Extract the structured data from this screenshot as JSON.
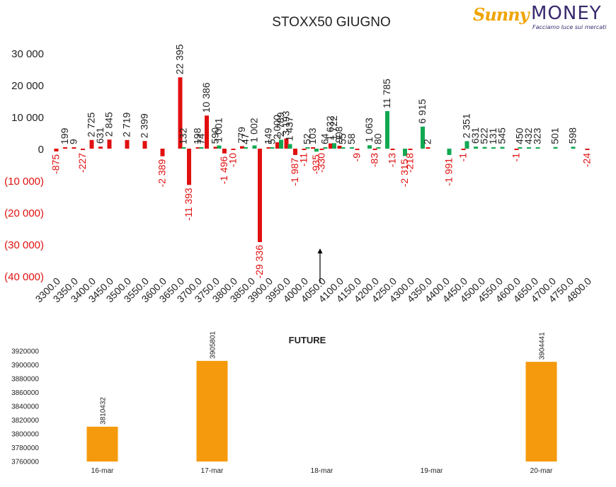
{
  "logo": {
    "brand_a": "Sunny",
    "brand_b": "MONEY",
    "tagline": "Facciamo luce sui mercati"
  },
  "colors": {
    "put": "#e01010",
    "call": "#12a852",
    "future_bar": "#f59a0c",
    "logo_orange": "#f0a400",
    "logo_purple": "#3a2a6e"
  },
  "chart_data": [
    {
      "type": "bar",
      "title": "STOXX50 GIUGNO",
      "x_range": [
        3300,
        4800
      ],
      "ylim": [
        -40000,
        30000
      ],
      "y_ticks": [
        {
          "v": 30000,
          "label": "30 000"
        },
        {
          "v": 20000,
          "label": "20 000"
        },
        {
          "v": 10000,
          "label": "10 000"
        },
        {
          "v": 0,
          "label": "0"
        },
        {
          "v": -10000,
          "label": "(10 000)"
        },
        {
          "v": -20000,
          "label": "(20 000)"
        },
        {
          "v": -30000,
          "label": "(30 000)"
        },
        {
          "v": -40000,
          "label": "(40 000)"
        }
      ],
      "x_ticks": [
        "3300.0",
        "3350.0",
        "3400.0",
        "3450.0",
        "3500.0",
        "3550.0",
        "3600.0",
        "3650.0",
        "3700.0",
        "3750.0",
        "3800.0",
        "3850.0",
        "3900.0",
        "3950.0",
        "4000.0",
        "4050.0",
        "4100.0",
        "4150.0",
        "4200.0",
        "4250.0",
        "4300.0",
        "4350.0",
        "4400.0",
        "4450.0",
        "4500.0",
        "4550.0",
        "4600.0",
        "4650.0",
        "4700.0",
        "4750.0",
        "4800.0"
      ],
      "arrow_strike": 4040,
      "series": [
        {
          "role": "red",
          "points": [
            {
              "x": 3300,
              "y": -875,
              "label": "-875"
            },
            {
              "x": 3325,
              "y": 199,
              "label": "199"
            },
            {
              "x": 3350,
              "y": 9,
              "label": "9"
            },
            {
              "x": 3375,
              "y": -227,
              "label": "-227"
            },
            {
              "x": 3400,
              "y": 2725,
              "label": "2 725"
            },
            {
              "x": 3425,
              "y": 631,
              "label": "631"
            },
            {
              "x": 3450,
              "y": 2845,
              "label": "2 845"
            },
            {
              "x": 3500,
              "y": 2719,
              "label": "2 719"
            },
            {
              "x": 3550,
              "y": 2399,
              "label": "2 399"
            },
            {
              "x": 3600,
              "y": -2389,
              "label": "-2 389"
            },
            {
              "x": 3650,
              "y": 22395,
              "label": "22 395"
            },
            {
              "x": 3675,
              "y": -11393,
              "label": "-11 393"
            },
            {
              "x": 3700,
              "y": 198,
              "label": "198"
            },
            {
              "x": 3725,
              "y": 10386,
              "label": "10 386"
            },
            {
              "x": 3750,
              "y": 590,
              "label": "590"
            },
            {
              "x": 3775,
              "y": -1496,
              "label": "-1 496"
            },
            {
              "x": 3800,
              "y": -10,
              "label": "-10"
            },
            {
              "x": 3825,
              "y": 779,
              "label": "779"
            },
            {
              "x": 3875,
              "y": -29336,
              "label": "-29 336"
            },
            {
              "x": 3900,
              "y": 149,
              "label": "149"
            },
            {
              "x": 3925,
              "y": 2000,
              "label": "2 000"
            },
            {
              "x": 3950,
              "y": 3193,
              "label": "3 193"
            },
            {
              "x": 3975,
              "y": -1987,
              "label": "-1 987"
            },
            {
              "x": 4000,
              "y": -11,
              "label": "-11"
            },
            {
              "x": 4025,
              "y": 103,
              "label": "103"
            },
            {
              "x": 4050,
              "y": -330,
              "label": "-330"
            },
            {
              "x": 4075,
              "y": 1632,
              "label": "1 632"
            },
            {
              "x": 4100,
              "y": 908,
              "label": "908"
            },
            {
              "x": 4150,
              "y": -9,
              "label": "-9"
            },
            {
              "x": 4200,
              "y": -83,
              "label": "-83"
            },
            {
              "x": 4250,
              "y": -13,
              "label": "-13"
            },
            {
              "x": 4300,
              "y": -218,
              "label": "-218"
            },
            {
              "x": 4350,
              "y": 2,
              "label": "2"
            },
            {
              "x": 4450,
              "y": -1,
              "label": "-1"
            },
            {
              "x": 4600,
              "y": -1,
              "label": "-1"
            },
            {
              "x": 4800,
              "y": -24,
              "label": "-24"
            }
          ]
        },
        {
          "role": "green",
          "points": [
            {
              "x": 3650,
              "y": 132,
              "label": "132"
            },
            {
              "x": 3700,
              "y": 74,
              "label": "74"
            },
            {
              "x": 3750,
              "y": 1001,
              "label": "1 001"
            },
            {
              "x": 3825,
              "y": 47,
              "label": "47"
            },
            {
              "x": 3850,
              "y": 1002,
              "label": "1 002"
            },
            {
              "x": 3900,
              "y": 5,
              "label": "5"
            },
            {
              "x": 3925,
              "y": 2789,
              "label": "2 789"
            },
            {
              "x": 3950,
              "y": 1437,
              "label": "1 437"
            },
            {
              "x": 4000,
              "y": 52,
              "label": "52"
            },
            {
              "x": 4025,
              "y": -935,
              "label": "-935"
            },
            {
              "x": 4050,
              "y": 64,
              "label": "64"
            },
            {
              "x": 4075,
              "y": 1722,
              "label": "1 722"
            },
            {
              "x": 4100,
              "y": 55,
              "label": "55"
            },
            {
              "x": 4125,
              "y": 58,
              "label": "58"
            },
            {
              "x": 4175,
              "y": 1063,
              "label": "1 063"
            },
            {
              "x": 4200,
              "y": 80,
              "label": "80"
            },
            {
              "x": 4225,
              "y": 11785,
              "label": "11 785"
            },
            {
              "x": 4275,
              "y": -2315,
              "label": "-2 315"
            },
            {
              "x": 4325,
              "y": 6915,
              "label": "6 915"
            },
            {
              "x": 4400,
              "y": -1991,
              "label": "-1 991"
            },
            {
              "x": 4450,
              "y": 2351,
              "label": "2 351"
            },
            {
              "x": 4475,
              "y": 631,
              "label": "631"
            },
            {
              "x": 4500,
              "y": 522,
              "label": "522"
            },
            {
              "x": 4525,
              "y": 131,
              "label": "131"
            },
            {
              "x": 4550,
              "y": 545,
              "label": "545"
            },
            {
              "x": 4600,
              "y": 450,
              "label": "450"
            },
            {
              "x": 4625,
              "y": 432,
              "label": "432"
            },
            {
              "x": 4650,
              "y": 323,
              "label": "323"
            },
            {
              "x": 4700,
              "y": 501,
              "label": "501"
            },
            {
              "x": 4750,
              "y": 598,
              "label": "598"
            }
          ]
        }
      ]
    },
    {
      "type": "bar",
      "title": "FUTURE",
      "categories": [
        "16-mar",
        "17-mar",
        "18-mar",
        "19-mar",
        "20-mar"
      ],
      "values": [
        3810432,
        3905801,
        null,
        null,
        3904441
      ],
      "value_labels": [
        "3810432",
        "3905801",
        "",
        "",
        "3904441"
      ],
      "ylim": [
        3760000,
        3920000
      ],
      "y_ticks": [
        "3920000",
        "3900000",
        "3880000",
        "3860000",
        "3840000",
        "3820000",
        "3800000",
        "3780000",
        "3760000"
      ]
    }
  ]
}
